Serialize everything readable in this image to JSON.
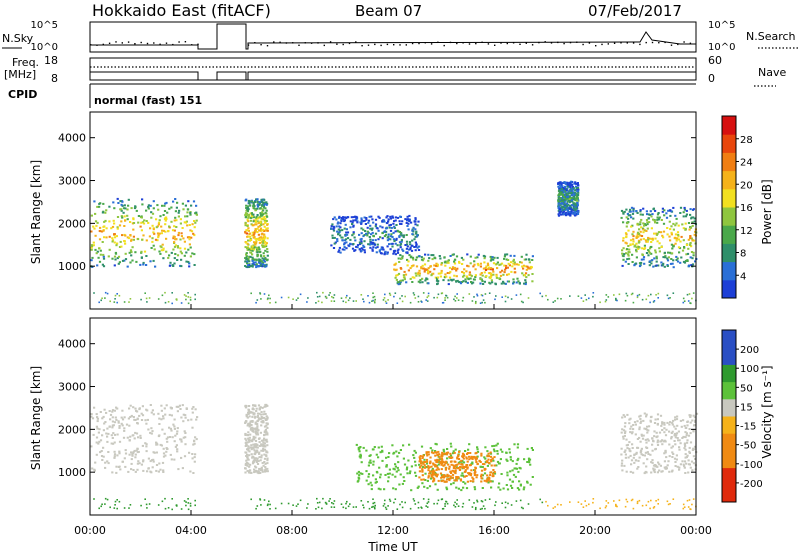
{
  "header": {
    "title": "Hokkaido East (fitACF)",
    "beam": "Beam 07",
    "date": "07/Feb/2017"
  },
  "labels": {
    "nsky": "N.Sky",
    "nsearch": "N.Search",
    "freq_line1": "Freq.",
    "freq_line2": "[MHz]",
    "nave": "Nave",
    "cpid": "CPID",
    "cpid_value": "normal (fast) 151"
  },
  "noise_panel": {
    "left_ticks": [
      "10^5",
      "10^0"
    ],
    "right_ticks": [
      "10^5",
      "10^0"
    ]
  },
  "freq_panel": {
    "left_ticks": [
      "18",
      "8"
    ],
    "right_ticks": [
      "60",
      "0"
    ]
  },
  "chart_data": [
    {
      "type": "heatmap",
      "panel": "power",
      "ylabel": "Slant Range [km]",
      "xlabel": "",
      "ylim": [
        0,
        4600
      ],
      "yticks": [
        "1000",
        "2000",
        "3000",
        "4000"
      ],
      "colorbar": {
        "label": "Power [dB]",
        "range": [
          0,
          32
        ],
        "ticks": [
          "4",
          "8",
          "12",
          "16",
          "20",
          "24",
          "28"
        ]
      },
      "data_gaps_hours": [
        [
          4.3,
          6.1
        ]
      ],
      "echo_regions": [
        {
          "time_hours": [
            0.0,
            4.2
          ],
          "range_km": [
            1000,
            2600
          ],
          "peak_db": 26
        },
        {
          "time_hours": [
            6.1,
            7.0
          ],
          "range_km": [
            1000,
            2600
          ],
          "peak_db": 26
        },
        {
          "time_hours": [
            9.5,
            13.0
          ],
          "range_km": [
            1300,
            2200
          ],
          "peak_db": 12
        },
        {
          "time_hours": [
            12.0,
            17.5
          ],
          "range_km": [
            600,
            1300
          ],
          "peak_db": 28
        },
        {
          "time_hours": [
            18.5,
            19.3
          ],
          "range_km": [
            2200,
            3000
          ],
          "peak_db": 14
        },
        {
          "time_hours": [
            21.0,
            24.0
          ],
          "range_km": [
            1000,
            2400
          ],
          "peak_db": 24
        }
      ]
    },
    {
      "type": "heatmap",
      "panel": "velocity",
      "ylabel": "Slant Range [km]",
      "xlabel": "Time UT",
      "ylim": [
        0,
        4600
      ],
      "yticks": [
        "1000",
        "2000",
        "3000",
        "4000"
      ],
      "xticks": [
        "00:00",
        "04:00",
        "08:00",
        "12:00",
        "16:00",
        "20:00",
        "00:00"
      ],
      "colorbar": {
        "label": "Velocity [m s⁻¹]",
        "ticks": [
          "200",
          "100",
          "50",
          "15",
          "-15",
          "-50",
          "-100",
          "-200"
        ]
      },
      "echo_regions": [
        {
          "time_hours": [
            0.0,
            4.2
          ],
          "range_km": [
            1000,
            2600
          ],
          "velocity": 0
        },
        {
          "time_hours": [
            6.1,
            7.0
          ],
          "range_km": [
            1000,
            2600
          ],
          "velocity": 0
        },
        {
          "time_hours": [
            10.5,
            17.5
          ],
          "range_km": [
            600,
            1700
          ],
          "velocity": 40
        },
        {
          "time_hours": [
            13.0,
            16.0
          ],
          "range_km": [
            800,
            1500
          ],
          "velocity": -70
        },
        {
          "time_hours": [
            21.0,
            24.0
          ],
          "range_km": [
            1000,
            2400
          ],
          "velocity": 0
        }
      ]
    }
  ]
}
